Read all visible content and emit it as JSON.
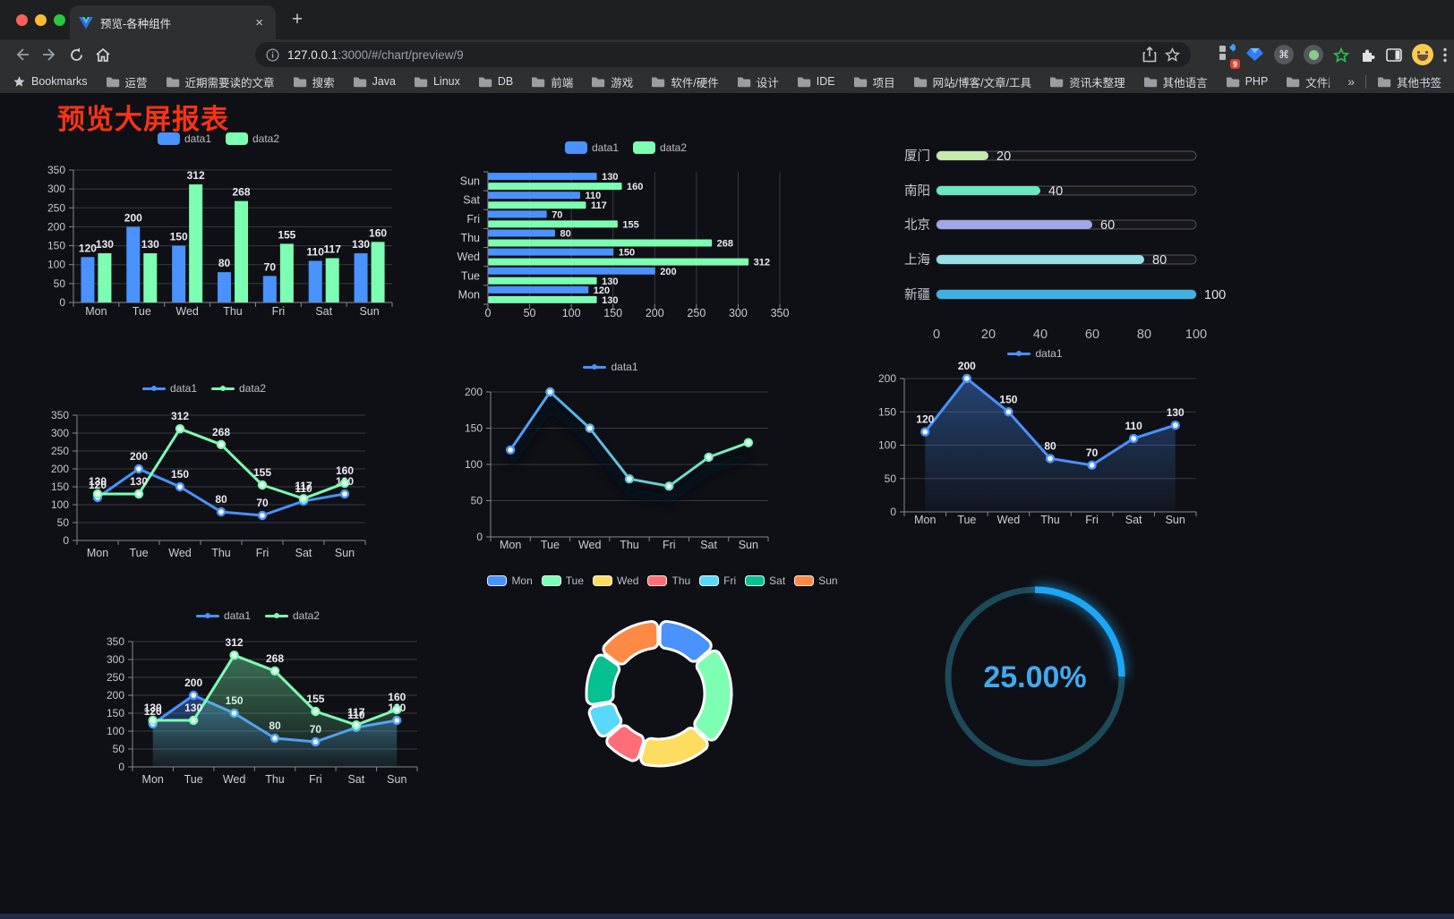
{
  "browser": {
    "traffic_lights": {
      "close": "#ff5f57",
      "minimize": "#febc2e",
      "zoom": "#28c840"
    },
    "tab": {
      "title": "预览-各种组件",
      "close_glyph": "×",
      "new_tab_glyph": "+"
    },
    "toolbar": {
      "url_host": "127.0.0.1",
      "url_path": ":3000/#/chart/preview/9",
      "extension_badge": "9"
    },
    "bookmarks_bar": {
      "label": "Bookmarks",
      "items": [
        "运营",
        "近期需要读的文章",
        "搜索",
        "Java",
        "Linux",
        "DB",
        "前端",
        "游戏",
        "软件/硬件",
        "设计",
        "IDE",
        "项目",
        "网站/博客/文章/工具",
        "资讯未整理",
        "其他语言",
        "PHP",
        "文件服务器"
      ],
      "overflow_glyph": "»",
      "other_bookmarks": "其他书签"
    }
  },
  "page": {
    "title": "预览大屏报表",
    "title_color": "#f63413"
  },
  "chart_data": [
    {
      "type": "bar",
      "categories": [
        "Mon",
        "Tue",
        "Wed",
        "Thu",
        "Fri",
        "Sat",
        "Sun"
      ],
      "series": [
        {
          "name": "data1",
          "color": "#4992ff",
          "values": [
            120,
            200,
            150,
            80,
            70,
            110,
            130
          ]
        },
        {
          "name": "data2",
          "color": "#7cffb2",
          "values": [
            130,
            130,
            312,
            268,
            155,
            117,
            160
          ]
        }
      ],
      "ylim": [
        0,
        350
      ],
      "yticks": [
        0,
        50,
        100,
        150,
        200,
        250,
        300,
        350
      ],
      "legend_position": "top",
      "legend_marker": "rect",
      "value_labels": true,
      "grid": true
    },
    {
      "type": "hbar",
      "categories": [
        "Mon",
        "Tue",
        "Wed",
        "Thu",
        "Fri",
        "Sat",
        "Sun"
      ],
      "category_order_top_to_bottom": [
        "Sun",
        "Sat",
        "Fri",
        "Thu",
        "Wed",
        "Tue",
        "Mon"
      ],
      "series": [
        {
          "name": "data1",
          "color": "#4992ff",
          "values": [
            120,
            200,
            150,
            80,
            70,
            110,
            130
          ]
        },
        {
          "name": "data2",
          "color": "#7cffb2",
          "values": [
            130,
            130,
            312,
            268,
            155,
            117,
            160
          ]
        }
      ],
      "xlim": [
        0,
        350
      ],
      "xticks": [
        0,
        50,
        100,
        150,
        200,
        250,
        300,
        350
      ],
      "legend_position": "top",
      "legend_marker": "rect",
      "value_labels": true,
      "grid": true
    },
    {
      "type": "progress",
      "max": 100,
      "xticks": [
        0,
        20,
        40,
        60,
        80,
        100
      ],
      "rows": [
        {
          "label": "厦门",
          "value": 20,
          "color": "#c4ebad"
        },
        {
          "label": "南阳",
          "value": 40,
          "color": "#6be6c1"
        },
        {
          "label": "北京",
          "value": 60,
          "color": "#a0a7e6"
        },
        {
          "label": "上海",
          "value": 80,
          "color": "#96dee8"
        },
        {
          "label": "新疆",
          "value": 100,
          "color": "#3fb1e3"
        }
      ]
    },
    {
      "type": "line",
      "categories": [
        "Mon",
        "Tue",
        "Wed",
        "Thu",
        "Fri",
        "Sat",
        "Sun"
      ],
      "series": [
        {
          "name": "data1",
          "color": "#4992ff",
          "values": [
            120,
            200,
            150,
            80,
            70,
            110,
            130
          ]
        },
        {
          "name": "data2",
          "color": "#7cffb2",
          "values": [
            130,
            130,
            312,
            268,
            155,
            117,
            160
          ]
        }
      ],
      "ylim": [
        0,
        350
      ],
      "yticks": [
        0,
        50,
        100,
        150,
        200,
        250,
        300,
        350
      ],
      "legend_position": "top",
      "legend_marker": "line",
      "value_labels": true,
      "grid": true
    },
    {
      "type": "line",
      "categories": [
        "Mon",
        "Tue",
        "Wed",
        "Thu",
        "Fri",
        "Sat",
        "Sun"
      ],
      "series": [
        {
          "name": "data1",
          "gradient": [
            "#4992ff",
            "#7cffb2"
          ],
          "values": [
            120,
            200,
            150,
            80,
            70,
            110,
            130
          ],
          "shadow": true
        }
      ],
      "ylim": [
        0,
        200
      ],
      "yticks": [
        0,
        50,
        100,
        150,
        200
      ],
      "legend_position": "top",
      "legend_marker": "line",
      "value_labels": false,
      "grid": true
    },
    {
      "type": "line",
      "categories": [
        "Mon",
        "Tue",
        "Wed",
        "Thu",
        "Fri",
        "Sat",
        "Sun"
      ],
      "series": [
        {
          "name": "data1",
          "color": "#4992ff",
          "values": [
            120,
            200,
            150,
            80,
            70,
            110,
            130
          ],
          "area": true
        }
      ],
      "ylim": [
        0,
        200
      ],
      "yticks": [
        0,
        50,
        100,
        150,
        200
      ],
      "legend_position": "top",
      "legend_marker": "line",
      "value_labels": true,
      "grid": true
    },
    {
      "type": "line",
      "categories": [
        "Mon",
        "Tue",
        "Wed",
        "Thu",
        "Fri",
        "Sat",
        "Sun"
      ],
      "series": [
        {
          "name": "data1",
          "color": "#4992ff",
          "values": [
            120,
            200,
            150,
            80,
            70,
            110,
            130
          ],
          "area": true
        },
        {
          "name": "data2",
          "color": "#7cffb2",
          "values": [
            130,
            130,
            312,
            268,
            155,
            117,
            160
          ],
          "area": true
        }
      ],
      "ylim": [
        0,
        350
      ],
      "yticks": [
        0,
        50,
        100,
        150,
        200,
        250,
        300,
        350
      ],
      "legend_position": "top",
      "legend_marker": "line",
      "value_labels": true,
      "grid": true
    },
    {
      "type": "pie",
      "subtype": "donut",
      "categories": [
        "Mon",
        "Tue",
        "Wed",
        "Thu",
        "Fri",
        "Sat",
        "Sun"
      ],
      "values": [
        120,
        200,
        150,
        80,
        70,
        110,
        130
      ],
      "colors": [
        "#4992ff",
        "#7cffb2",
        "#fddd60",
        "#ff6e76",
        "#58d9f9",
        "#05c091",
        "#ff8a45"
      ],
      "legend_position": "top"
    },
    {
      "type": "gauge",
      "value_percent": 25,
      "label": "25.00%",
      "progress_color": "#1ba7f5",
      "track_color": "#1d4a58",
      "text_color": "#41aaee"
    }
  ]
}
